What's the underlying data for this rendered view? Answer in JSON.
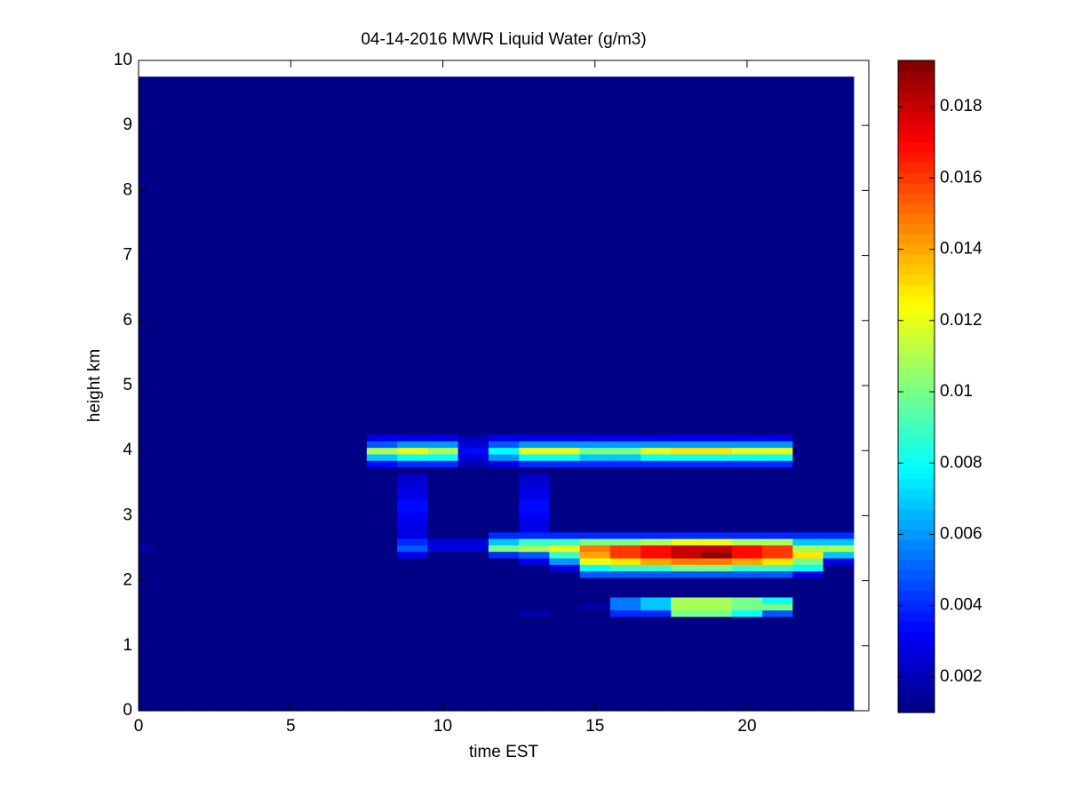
{
  "chart_data": {
    "type": "heatmap",
    "title": "04-14-2016 MWR Liquid Water (g/m3)",
    "x_label": "time EST",
    "y_label": "height km",
    "colormap": "jet",
    "xlim": [
      0,
      24
    ],
    "xticks": [
      0,
      5,
      10,
      15,
      20
    ],
    "ylim": [
      0,
      10
    ],
    "yticks": [
      0,
      1,
      2,
      3,
      4,
      5,
      6,
      7,
      8,
      9,
      10
    ],
    "clim": [
      0.001,
      0.0193
    ],
    "cticks": [
      0.002,
      0.004,
      0.006,
      0.008,
      0.01,
      0.012,
      0.014,
      0.016,
      0.018
    ],
    "x_edges": [
      0,
      0.5,
      1.5,
      2.5,
      3.5,
      4.5,
      5.5,
      6.5,
      7.5,
      8.5,
      9.5,
      10.5,
      11.5,
      12.5,
      13.5,
      14.5,
      15.5,
      16.5,
      17.5,
      18.5,
      19.5,
      20.5,
      21.5,
      22.5,
      23.5
    ],
    "y_edges": [
      0,
      1.45,
      1.55,
      1.65,
      1.75,
      2.05,
      2.15,
      2.25,
      2.35,
      2.45,
      2.55,
      2.65,
      2.75,
      2.85,
      2.95,
      3.05,
      3.15,
      3.25,
      3.35,
      3.45,
      3.55,
      3.65,
      3.75,
      3.85,
      3.95,
      4.05,
      4.15,
      4.25,
      9.75
    ],
    "z": [
      [
        0.001,
        0.001,
        0.001,
        0.001,
        0.001,
        0.001,
        0.001,
        0.001,
        0.001,
        0.001,
        0.001,
        0.001,
        0.001,
        0.001,
        0.001,
        0.001,
        0.001,
        0.001,
        0.001,
        0.001,
        0.001,
        0.001,
        0.001,
        0.001
      ],
      [
        0.001,
        0.001,
        0.001,
        0.001,
        0.001,
        0.001,
        0.001,
        0.001,
        0.001,
        0.001,
        0.001,
        0.001,
        0.001,
        0.0018,
        0.001,
        0.001,
        0.004,
        0.004,
        0.01,
        0.01,
        0.008,
        0.005,
        0.001,
        0.001
      ],
      [
        0.001,
        0.001,
        0.001,
        0.001,
        0.001,
        0.001,
        0.001,
        0.001,
        0.001,
        0.001,
        0.001,
        0.001,
        0.001,
        0.001,
        0.001,
        0.0018,
        0.0055,
        0.007,
        0.011,
        0.011,
        0.01,
        0.01,
        0.001,
        0.001
      ],
      [
        0.001,
        0.001,
        0.001,
        0.001,
        0.001,
        0.001,
        0.001,
        0.001,
        0.001,
        0.001,
        0.001,
        0.001,
        0.001,
        0.001,
        0.001,
        0.001,
        0.0055,
        0.007,
        0.011,
        0.011,
        0.01,
        0.008,
        0.001,
        0.001
      ],
      [
        0.001,
        0.001,
        0.001,
        0.001,
        0.001,
        0.001,
        0.001,
        0.001,
        0.001,
        0.001,
        0.001,
        0.001,
        0.001,
        0.001,
        0.001,
        0.001,
        0.001,
        0.001,
        0.001,
        0.001,
        0.001,
        0.001,
        0.001,
        0.001
      ],
      [
        0.001,
        0.001,
        0.001,
        0.001,
        0.001,
        0.001,
        0.001,
        0.001,
        0.001,
        0.001,
        0.001,
        0.001,
        0.001,
        0.001,
        0.001,
        0.005,
        0.005,
        0.005,
        0.005,
        0.005,
        0.005,
        0.005,
        0.003,
        0.001
      ],
      [
        0.001,
        0.001,
        0.001,
        0.001,
        0.001,
        0.001,
        0.001,
        0.001,
        0.001,
        0.001,
        0.001,
        0.001,
        0.001,
        0.001,
        0.003,
        0.008,
        0.009,
        0.009,
        0.01,
        0.01,
        0.009,
        0.009,
        0.008,
        0.001
      ],
      [
        0.001,
        0.001,
        0.001,
        0.001,
        0.001,
        0.001,
        0.001,
        0.001,
        0.001,
        0.001,
        0.001,
        0.001,
        0.001,
        0.003,
        0.006,
        0.012,
        0.013,
        0.014,
        0.015,
        0.015,
        0.014,
        0.013,
        0.01,
        0.003
      ],
      [
        0.001,
        0.001,
        0.001,
        0.001,
        0.001,
        0.001,
        0.001,
        0.001,
        0.001,
        0.003,
        0.001,
        0.001,
        0.004,
        0.005,
        0.009,
        0.014,
        0.016,
        0.017,
        0.018,
        0.019,
        0.017,
        0.016,
        0.013,
        0.007
      ],
      [
        0.0016,
        0.001,
        0.001,
        0.001,
        0.001,
        0.001,
        0.001,
        0.001,
        0.001,
        0.005,
        0.0025,
        0.0025,
        0.01,
        0.011,
        0.012,
        0.015,
        0.016,
        0.017,
        0.018,
        0.018,
        0.017,
        0.016,
        0.011,
        0.011
      ],
      [
        0.001,
        0.001,
        0.001,
        0.001,
        0.001,
        0.001,
        0.001,
        0.001,
        0.001,
        0.004,
        0.0025,
        0.0025,
        0.007,
        0.009,
        0.009,
        0.01,
        0.01,
        0.011,
        0.012,
        0.012,
        0.011,
        0.011,
        0.007,
        0.007
      ],
      [
        0.001,
        0.001,
        0.001,
        0.001,
        0.001,
        0.001,
        0.001,
        0.001,
        0.001,
        0.003,
        0.001,
        0.001,
        0.004,
        0.004,
        0.004,
        0.004,
        0.004,
        0.004,
        0.004,
        0.004,
        0.004,
        0.004,
        0.004,
        0.004
      ],
      [
        0.001,
        0.001,
        0.001,
        0.001,
        0.001,
        0.001,
        0.001,
        0.001,
        0.001,
        0.003,
        0.001,
        0.001,
        0.001,
        0.003,
        0.001,
        0.001,
        0.001,
        0.001,
        0.001,
        0.001,
        0.001,
        0.001,
        0.001,
        0.001
      ],
      [
        0.001,
        0.001,
        0.001,
        0.001,
        0.001,
        0.001,
        0.001,
        0.001,
        0.001,
        0.0028,
        0.001,
        0.001,
        0.001,
        0.0028,
        0.001,
        0.001,
        0.001,
        0.001,
        0.001,
        0.001,
        0.001,
        0.001,
        0.001,
        0.001
      ],
      [
        0.001,
        0.001,
        0.001,
        0.001,
        0.001,
        0.001,
        0.001,
        0.001,
        0.001,
        0.0032,
        0.001,
        0.001,
        0.001,
        0.0032,
        0.001,
        0.001,
        0.001,
        0.001,
        0.001,
        0.001,
        0.001,
        0.001,
        0.001,
        0.001
      ],
      [
        0.001,
        0.001,
        0.001,
        0.001,
        0.001,
        0.001,
        0.001,
        0.001,
        0.001,
        0.0035,
        0.001,
        0.001,
        0.001,
        0.0035,
        0.001,
        0.001,
        0.001,
        0.001,
        0.001,
        0.001,
        0.001,
        0.001,
        0.001,
        0.001
      ],
      [
        0.001,
        0.001,
        0.001,
        0.001,
        0.001,
        0.001,
        0.001,
        0.001,
        0.001,
        0.0035,
        0.001,
        0.001,
        0.001,
        0.0035,
        0.001,
        0.001,
        0.001,
        0.001,
        0.001,
        0.001,
        0.001,
        0.001,
        0.001,
        0.001
      ],
      [
        0.001,
        0.001,
        0.001,
        0.001,
        0.001,
        0.001,
        0.001,
        0.001,
        0.001,
        0.003,
        0.001,
        0.001,
        0.001,
        0.003,
        0.001,
        0.001,
        0.001,
        0.001,
        0.001,
        0.001,
        0.001,
        0.001,
        0.001,
        0.001
      ],
      [
        0.001,
        0.001,
        0.001,
        0.001,
        0.001,
        0.001,
        0.001,
        0.001,
        0.001,
        0.0028,
        0.001,
        0.001,
        0.001,
        0.0028,
        0.001,
        0.001,
        0.001,
        0.001,
        0.001,
        0.001,
        0.001,
        0.001,
        0.001,
        0.001
      ],
      [
        0.001,
        0.001,
        0.001,
        0.001,
        0.001,
        0.001,
        0.001,
        0.001,
        0.001,
        0.0025,
        0.001,
        0.001,
        0.001,
        0.0025,
        0.001,
        0.001,
        0.001,
        0.001,
        0.001,
        0.001,
        0.001,
        0.001,
        0.001,
        0.001
      ],
      [
        0.001,
        0.001,
        0.001,
        0.001,
        0.001,
        0.001,
        0.001,
        0.001,
        0.001,
        0.0022,
        0.001,
        0.001,
        0.001,
        0.0022,
        0.001,
        0.001,
        0.001,
        0.001,
        0.001,
        0.001,
        0.001,
        0.001,
        0.001,
        0.001
      ],
      [
        0.001,
        0.001,
        0.001,
        0.001,
        0.001,
        0.001,
        0.001,
        0.001,
        0.001,
        0.001,
        0.001,
        0.001,
        0.001,
        0.001,
        0.001,
        0.001,
        0.001,
        0.001,
        0.001,
        0.001,
        0.001,
        0.001,
        0.001,
        0.001
      ],
      [
        0.001,
        0.001,
        0.001,
        0.001,
        0.001,
        0.001,
        0.001,
        0.001,
        0.0035,
        0.004,
        0.004,
        0.002,
        0.003,
        0.004,
        0.004,
        0.004,
        0.004,
        0.004,
        0.004,
        0.004,
        0.004,
        0.004,
        0.001,
        0.001
      ],
      [
        0.001,
        0.001,
        0.001,
        0.001,
        0.001,
        0.001,
        0.001,
        0.001,
        0.007,
        0.008,
        0.008,
        0.0025,
        0.006,
        0.008,
        0.008,
        0.007,
        0.007,
        0.008,
        0.008,
        0.008,
        0.008,
        0.008,
        0.001,
        0.001
      ],
      [
        0.001,
        0.001,
        0.001,
        0.001,
        0.001,
        0.001,
        0.001,
        0.001,
        0.011,
        0.012,
        0.011,
        0.0035,
        0.008,
        0.012,
        0.012,
        0.01,
        0.01,
        0.012,
        0.013,
        0.013,
        0.012,
        0.012,
        0.001,
        0.001
      ],
      [
        0.001,
        0.001,
        0.001,
        0.001,
        0.001,
        0.001,
        0.001,
        0.001,
        0.005,
        0.006,
        0.006,
        0.0025,
        0.005,
        0.006,
        0.006,
        0.006,
        0.006,
        0.006,
        0.006,
        0.006,
        0.006,
        0.006,
        0.001,
        0.001
      ],
      [
        0.001,
        0.001,
        0.001,
        0.001,
        0.001,
        0.001,
        0.001,
        0.001,
        0.003,
        0.003,
        0.003,
        0.002,
        0.003,
        0.003,
        0.003,
        0.003,
        0.003,
        0.003,
        0.003,
        0.003,
        0.003,
        0.003,
        0.001,
        0.001
      ],
      [
        0.001,
        0.001,
        0.001,
        0.001,
        0.001,
        0.001,
        0.001,
        0.001,
        0.001,
        0.001,
        0.001,
        0.001,
        0.001,
        0.001,
        0.001,
        0.001,
        0.001,
        0.001,
        0.001,
        0.001,
        0.001,
        0.001,
        0.001,
        0.001
      ]
    ]
  }
}
